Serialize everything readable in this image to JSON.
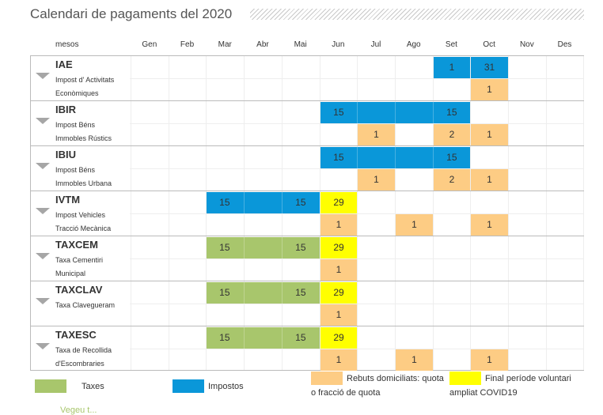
{
  "title": "Calendari de pagaments del 2020",
  "months_label": "mesos",
  "months": [
    "Gen",
    "Feb",
    "Mar",
    "Abr",
    "Mai",
    "Jun",
    "Jul",
    "Ago",
    "Set",
    "Oct",
    "Nov",
    "Des"
  ],
  "taxes": [
    {
      "code": "IAE",
      "desc1": "Impost d' Activitats",
      "desc2": "Econòmiques",
      "top": [
        {
          "from": 8,
          "to": 8,
          "type": "blue",
          "label": "1"
        },
        {
          "from": 9,
          "to": 9,
          "type": "blue",
          "label": "31"
        }
      ],
      "bottom": [
        {
          "col": 9,
          "label": "1"
        }
      ]
    },
    {
      "code": "IBIR",
      "desc1": "Impost Béns",
      "desc2": "Immobles Rústics",
      "top": [
        {
          "from": 5,
          "to": 8,
          "type": "blue",
          "start": "15",
          "end": "15"
        }
      ],
      "bottom": [
        {
          "col": 6,
          "label": "1"
        },
        {
          "col": 8,
          "label": "2"
        },
        {
          "col": 9,
          "label": "1"
        }
      ]
    },
    {
      "code": "IBIU",
      "desc1": "Impost Béns",
      "desc2": "Immobles Urbana",
      "top": [
        {
          "from": 5,
          "to": 8,
          "type": "blue",
          "start": "15",
          "end": "15"
        }
      ],
      "bottom": [
        {
          "col": 6,
          "label": "1"
        },
        {
          "col": 8,
          "label": "2"
        },
        {
          "col": 9,
          "label": "1"
        }
      ]
    },
    {
      "code": "IVTM",
      "desc1": "Impost Vehicles",
      "desc2": "Tracció Mecànica",
      "top": [
        {
          "from": 2,
          "to": 4,
          "type": "blue",
          "start": "15",
          "end": "15"
        },
        {
          "from": 5,
          "to": 5,
          "type": "yellow",
          "label": "29"
        }
      ],
      "bottom": [
        {
          "col": 5,
          "label": "1"
        },
        {
          "col": 7,
          "label": "1"
        },
        {
          "col": 9,
          "label": "1"
        }
      ]
    },
    {
      "code": "TAXCEM",
      "desc1": "Taxa Cementiri",
      "desc2": "Municipal",
      "top": [
        {
          "from": 2,
          "to": 4,
          "type": "green",
          "start": "15",
          "end": "15"
        },
        {
          "from": 5,
          "to": 5,
          "type": "yellow",
          "label": "29"
        }
      ],
      "bottom": [
        {
          "col": 5,
          "label": "1"
        }
      ]
    },
    {
      "code": "TAXCLAV",
      "desc1": "Taxa Clavegueram",
      "desc2": "",
      "top": [
        {
          "from": 2,
          "to": 4,
          "type": "green",
          "start": "15",
          "end": "15"
        },
        {
          "from": 5,
          "to": 5,
          "type": "yellow",
          "label": "29"
        }
      ],
      "bottom": [
        {
          "col": 5,
          "label": "1"
        }
      ]
    },
    {
      "code": "TAXESC",
      "desc1": "Taxa de Recollida",
      "desc2": "d'Escombraries",
      "top": [
        {
          "from": 2,
          "to": 4,
          "type": "green",
          "start": "15",
          "end": "15"
        },
        {
          "from": 5,
          "to": 5,
          "type": "yellow",
          "label": "29"
        }
      ],
      "bottom": [
        {
          "col": 5,
          "label": "1"
        },
        {
          "col": 7,
          "label": "1"
        },
        {
          "col": 9,
          "label": "1"
        }
      ]
    }
  ],
  "legend": {
    "taxes": "Taxes",
    "impostos": "Impostos",
    "rebuts_line1": "Rebuts domiciliats: quota",
    "rebuts_line2": "o fracció de quota",
    "final_line1": "Final període voluntari",
    "final_line2": "ampliat COVID19"
  },
  "colors": {
    "blue": "#0a97d9",
    "green": "#a8c66c",
    "orange": "#fdcc84",
    "yellow": "#ffff00"
  },
  "footer_text": "Vegeu t..."
}
